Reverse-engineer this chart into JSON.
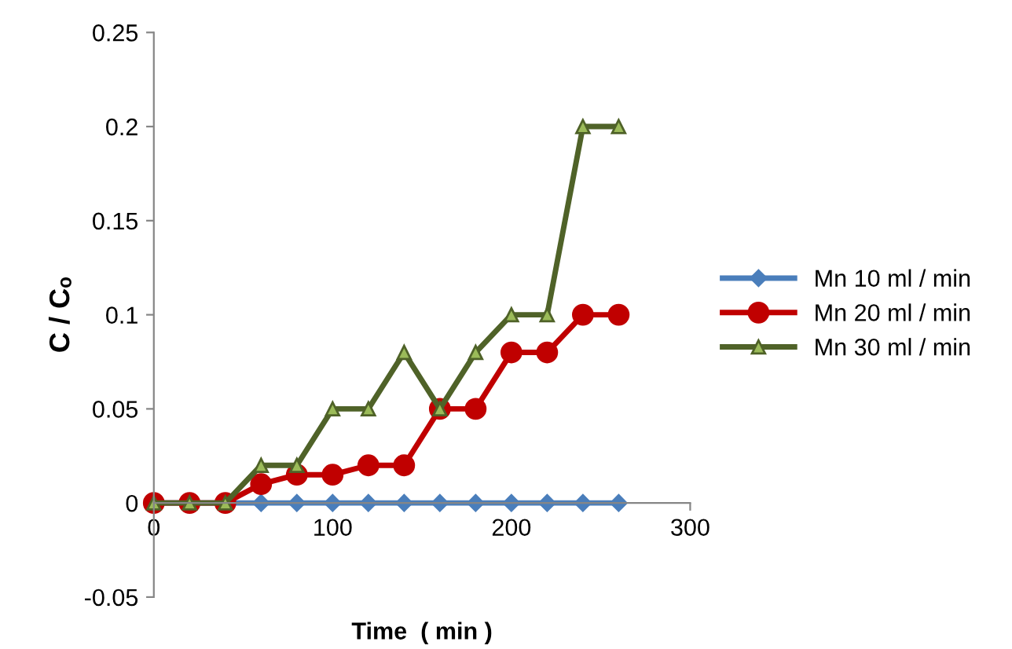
{
  "chart_data": {
    "type": "line",
    "xlabel": "Time  ( min )",
    "ylabel": "C / Cₒ",
    "x": [
      0,
      20,
      40,
      60,
      80,
      100,
      120,
      140,
      160,
      180,
      200,
      220,
      240,
      260
    ],
    "series": [
      {
        "name": "Mn 10 ml / min",
        "color": "#4a7ebb",
        "marker": "diamond",
        "values": [
          0,
          0,
          0,
          0,
          0,
          0,
          0,
          0,
          0,
          0,
          0,
          0,
          0,
          0
        ]
      },
      {
        "name": "Mn 20 ml / min",
        "color": "#c00000",
        "marker": "circle",
        "values": [
          0,
          0,
          0,
          0.01,
          0.015,
          0.015,
          0.02,
          0.02,
          0.05,
          0.05,
          0.08,
          0.08,
          0.1,
          0.1
        ]
      },
      {
        "name": "Mn 30 ml / min",
        "color": "#4f6228",
        "marker": "triangle",
        "values": [
          0,
          0,
          0,
          0.02,
          0.02,
          0.05,
          0.05,
          0.08,
          0.05,
          0.08,
          0.1,
          0.1,
          0.2,
          0.2
        ]
      }
    ],
    "xlim": [
      0,
      300
    ],
    "xticks": [
      0,
      100,
      200,
      300
    ],
    "ylim": [
      -0.05,
      0.25
    ],
    "yticks": [
      -0.05,
      0,
      0.05,
      0.1,
      0.15,
      0.2,
      0.25
    ],
    "grid": false,
    "legend": "right",
    "line_style": "solid"
  }
}
